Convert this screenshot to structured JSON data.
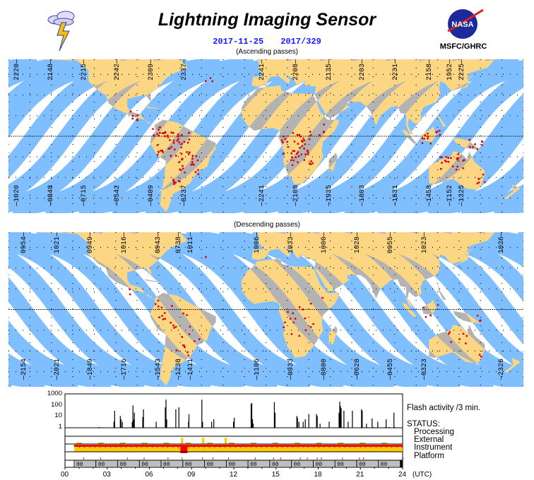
{
  "header": {
    "title": "Lightning Imaging Sensor",
    "date": "2017-11-25",
    "day_of_year": "2017/329",
    "ascending_caption": "(Ascending passes)",
    "descending_caption": "(Descending passes)",
    "logo_left": "lightning-cloud-icon",
    "logo_right_text": "NASA",
    "org": "MSFC/GHRC"
  },
  "colors": {
    "swath": "#80bfff",
    "land": "#b3b3b3",
    "land_in_swath": "#fcd683",
    "lightning": "#dd0000",
    "instrument": "#ffcc00",
    "status_red": "#ff0000",
    "orbit_box": "#bfbfbf"
  },
  "ascending": {
    "top_labels": [
      "2220",
      "2148",
      "2215",
      "2242",
      "2309",
      "2337",
      "2241",
      "2208",
      "2135",
      "2203",
      "2231",
      "2158",
      "1952",
      "2225"
    ],
    "bottom_labels": [
      "1020",
      "0848",
      "0715",
      "0542",
      "0409",
      "0237",
      "2241",
      "2108",
      "1935",
      "1803",
      "1631",
      "1458",
      "1152",
      "1325"
    ]
  },
  "descending": {
    "top_labels": [
      "0954",
      "1021",
      "0949",
      "1016",
      "0943",
      "0738",
      "1011",
      "1006",
      "1033",
      "1000",
      "1028",
      "0955",
      "1023",
      "1026"
    ],
    "bottom_labels": [
      "2154",
      "2021",
      "1849",
      "1716",
      "1543",
      "1238",
      "1411",
      "1106",
      "0933",
      "0800",
      "0628",
      "0455",
      "0323",
      "2326"
    ]
  },
  "chart_data": {
    "type": "bar",
    "title": "Flash activity /3 min.",
    "xlabel": "(UTC)",
    "x_ticks": [
      "00",
      "03",
      "06",
      "09",
      "12",
      "15",
      "18",
      "21",
      "24"
    ],
    "xlim": [
      0,
      24
    ],
    "y_scale": "log",
    "ylim": [
      1,
      1000
    ],
    "y_ticks": [
      "1",
      "10",
      "100",
      "1000"
    ],
    "flash_series": {
      "name": "Flash activity /3 min.",
      "hours": [
        2.4,
        3.45,
        3.5,
        3.9,
        3.95,
        4.05,
        4.75,
        4.8,
        4.85,
        4.9,
        5.5,
        5.55,
        6.45,
        7.1,
        7.15,
        7.2,
        7.85,
        8.07,
        8.75,
        8.78,
        9.7,
        9.75,
        10.4,
        10.55,
        11.95,
        12.0,
        13.2,
        13.25,
        13.3,
        13.35,
        14.85,
        14.9,
        16.45,
        16.5,
        16.6,
        16.9,
        17.05,
        17.3,
        17.85,
        17.9,
        18.1,
        18.75,
        19.45,
        19.5,
        19.55,
        19.6,
        19.8,
        20.1,
        20.4,
        21.05,
        21.1,
        21.4,
        21.8,
        21.9,
        22.2,
        22.75,
        22.8,
        23.0,
        23.35,
        23.4
      ],
      "values": [
        1,
        3,
        30,
        10,
        5,
        3,
        3,
        90,
        5,
        20,
        8,
        40,
        3,
        60,
        300,
        5,
        40,
        60,
        3,
        15,
        300,
        3,
        3,
        5,
        3,
        7,
        120,
        150,
        5,
        2,
        180,
        20,
        10,
        7,
        3,
        3,
        5,
        15,
        15,
        10,
        2,
        3,
        20,
        200,
        80,
        50,
        30,
        3,
        30,
        40,
        30,
        2,
        6,
        1,
        3,
        1,
        5,
        1,
        20,
        1
      ]
    },
    "status": {
      "label": "STATUS:",
      "rows": [
        "Processing",
        "External",
        "Instrument",
        "Platform"
      ],
      "instrument_on_from_hour": 0.65,
      "instrument_red_block_hours": [
        8.2,
        8.7
      ],
      "external_spikes_hours": [
        8.25,
        9.75,
        11.35
      ],
      "platform_ticks_hours": [
        1.3,
        2.5,
        4.4,
        5.6,
        7.3,
        8.3,
        9.75,
        10.5,
        11.6,
        13.5,
        14.8,
        15.3,
        16.7,
        17.2,
        17.9,
        18.2,
        19.7,
        20.9,
        21.2,
        24.0
      ]
    },
    "orbit_label": "00",
    "orbit_start_hours": [
      0.65,
      2.2,
      3.74,
      5.29,
      6.83,
      8.38,
      9.92,
      11.47,
      13.01,
      14.56,
      16.1,
      17.65,
      19.19,
      20.74,
      22.28
    ]
  }
}
